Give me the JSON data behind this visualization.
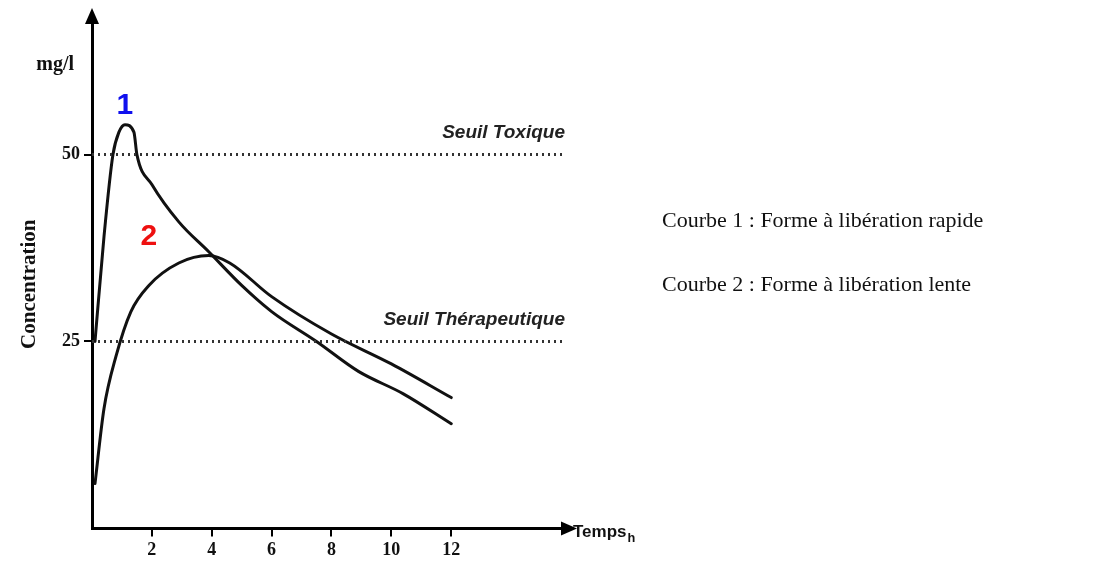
{
  "chart_data": {
    "type": "line",
    "xlabel": "Temps$_{h}$",
    "ylabel": "Concentration",
    "xlim": [
      0,
      15.8
    ],
    "ylim": [
      0,
      68
    ],
    "xticks": [
      2,
      4,
      6,
      8,
      10,
      12
    ],
    "yticks": [
      25,
      50
    ],
    "grid": false,
    "legend": "right",
    "marker": "none",
    "line_style": "solid",
    "series": [
      {
        "name": "1",
        "color": "#111111",
        "x": [
          0.1,
          0.4,
          0.7,
          0.9,
          1.1,
          1.4,
          1.5,
          2,
          2.9,
          3.9,
          5,
          6,
          7.5,
          8.9,
          10.4,
          12
        ],
        "values": [
          25,
          39,
          50,
          53,
          54,
          53,
          50,
          46,
          41,
          37,
          32.5,
          29,
          25,
          21,
          18,
          14
        ]
      },
      {
        "name": "2",
        "color": "#111111",
        "x": [
          0.1,
          0.4,
          0.8,
          1.3,
          1.9,
          2.9,
          3.9,
          4.6,
          6,
          8,
          10,
          12
        ],
        "values": [
          6,
          16,
          23,
          29,
          32.5,
          35.5,
          36.5,
          35.5,
          31,
          26,
          22,
          17.5
        ]
      }
    ],
    "ref_lines": [
      {
        "axis": "y",
        "value": 50,
        "label": "Seuil Toxique",
        "line_style": "dotted",
        "color": "#333333"
      },
      {
        "axis": "y",
        "value": 25,
        "label": "Seuil Thérapeutique",
        "line_style": "dotted",
        "color": "#333333"
      }
    ],
    "annotations": [
      "mg/l",
      "Courbe 1 : Forme à libération rapide",
      "Courbe 2 : Forme à libération lente"
    ]
  }
}
